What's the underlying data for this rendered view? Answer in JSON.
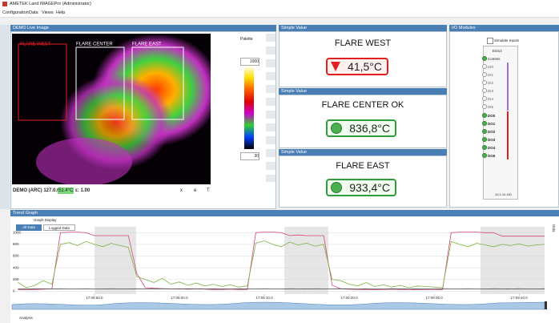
{
  "window": {
    "title": "AMETEK Land IMAGEPro (Administrator)",
    "menu": [
      "Configuration",
      "Data",
      "Views",
      "Help"
    ]
  },
  "live_image": {
    "title": "DEMO Live Image",
    "regions": [
      "FLARE WEST",
      "FLARE CENTER",
      "FLARE EAST"
    ],
    "status": {
      "source": "DEMO (ARC) 127.0.0.1",
      "temperature": "51.4°C",
      "emissivity": "ε: 1.00",
      "coords": [
        "x",
        "e",
        "T"
      ]
    }
  },
  "palette": {
    "title": "Palette",
    "max": "1000",
    "min": "30"
  },
  "simple_values": [
    {
      "panel": "Simple Value",
      "name": "FLARE WEST",
      "value": "41,5°C"
    },
    {
      "panel": "Simple Value",
      "name": "FLARE CENTER OK",
      "value": "836,8°C"
    },
    {
      "panel": "Simple Value",
      "name": "FLARE EAST",
      "value": "933,4°C"
    }
  ],
  "io_modules": {
    "title": "I/O Modules",
    "simulate": "Simulate Inputs",
    "module": "EI214",
    "comms": "Comms",
    "inputs": [
      "DI0",
      "DI1",
      "DI2",
      "DI3",
      "DI4",
      "DI5"
    ],
    "outputs": [
      "DO0",
      "DO1",
      "DO2",
      "DO3",
      "DO4",
      "DO5"
    ],
    "address": "10.1.10.151"
  },
  "trend": {
    "title": "Trend Graph",
    "graph_display": "Graph Display",
    "buttons": [
      "All Data",
      "Logged Data"
    ],
    "side_label": "Data",
    "analysis": "Analysis"
  },
  "chart_data": {
    "type": "line",
    "x": [
      1,
      2,
      3,
      4,
      5,
      6,
      7,
      8,
      9,
      10,
      11,
      12,
      13,
      14,
      15,
      16,
      17,
      18,
      19,
      20,
      21,
      22,
      23,
      24,
      25,
      26,
      27,
      28,
      29,
      30,
      31,
      32,
      33,
      34,
      35,
      36,
      37,
      38,
      39,
      40,
      41,
      42,
      43,
      44,
      45,
      46,
      47,
      48,
      49,
      50,
      51,
      52,
      53,
      54,
      55,
      56,
      57,
      58,
      59,
      60,
      61,
      62,
      63
    ],
    "series": [
      {
        "color": "#d0477a",
        "values": [
          30,
          25,
          30,
          35,
          40,
          1000,
          1010,
          1010,
          1000,
          950,
          950,
          950,
          950,
          950,
          300,
          60,
          50,
          45,
          40,
          40,
          35,
          40,
          35,
          30,
          30,
          35,
          30,
          30,
          1000,
          1010,
          1010,
          1000,
          950,
          960,
          950,
          950,
          950,
          100,
          40,
          35,
          30,
          30,
          25,
          30,
          35,
          30,
          30,
          25,
          30,
          30,
          30,
          1000,
          1010,
          1010,
          1010,
          1000,
          1000,
          940,
          940,
          940,
          940,
          940,
          940
        ]
      },
      {
        "color": "#7cb342",
        "values": [
          150,
          60,
          100,
          180,
          120,
          800,
          830,
          780,
          850,
          800,
          760,
          820,
          780,
          750,
          250,
          200,
          150,
          220,
          120,
          160,
          100,
          140,
          90,
          120,
          80,
          110,
          70,
          90,
          820,
          860,
          800,
          760,
          840,
          790,
          820,
          770,
          800,
          200,
          180,
          120,
          90,
          150,
          80,
          110,
          70,
          100,
          60,
          90,
          80,
          70,
          60,
          850,
          800,
          760,
          820,
          790,
          760,
          800,
          780,
          810,
          770,
          790,
          800
        ]
      },
      {
        "color": "#444444",
        "values": [
          40,
          38,
          42,
          40,
          38,
          42,
          40,
          38,
          42,
          40,
          38,
          42,
          40,
          38,
          42,
          40,
          38,
          42,
          40,
          38,
          42,
          40,
          38,
          42,
          40,
          38,
          42,
          40,
          38,
          42,
          40,
          38,
          42,
          40,
          38,
          42,
          40,
          38,
          42,
          40,
          38,
          42,
          40,
          38,
          42,
          40,
          38,
          42,
          40,
          38,
          42,
          40,
          38,
          42,
          40,
          38,
          42,
          40,
          38,
          42,
          40,
          38,
          42
        ]
      }
    ],
    "xlim": [
      0.3,
      63
    ],
    "xticks": [
      {
        "value": 10,
        "label": "17:08:50.0"
      },
      {
        "value": 20,
        "label": "17:09:00.0"
      },
      {
        "value": 30,
        "label": "17:09:10.0"
      },
      {
        "value": 40,
        "label": "17:09:20.0"
      },
      {
        "value": 50,
        "label": "17:09:30.0"
      },
      {
        "value": 60,
        "label": "17:09:40.0"
      }
    ],
    "ylim": [
      -50,
      1100
    ],
    "yticks": [
      0,
      200,
      400,
      600,
      800,
      1000
    ],
    "grid": true
  }
}
